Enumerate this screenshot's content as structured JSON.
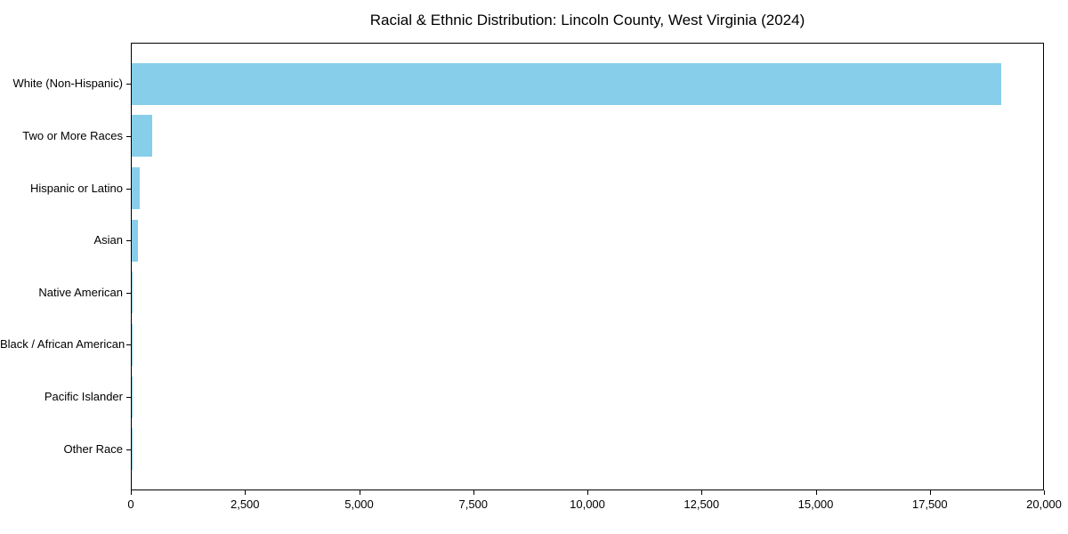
{
  "chart_data": {
    "type": "bar",
    "orientation": "horizontal",
    "title": "Racial & Ethnic Distribution: Lincoln County, West Virginia (2024)",
    "categories": [
      "White (Non-Hispanic)",
      "Two or More Races",
      "Hispanic or Latino",
      "Asian",
      "Native American",
      "Black / African American",
      "Pacific Islander",
      "Other Race"
    ],
    "values": [
      19050,
      450,
      180,
      135,
      25,
      12,
      4,
      6
    ],
    "xlabel": "",
    "ylabel": "",
    "xlim": [
      0,
      20000
    ],
    "xtick_values": [
      0,
      2500,
      5000,
      7500,
      10000,
      12500,
      15000,
      17500,
      20000
    ],
    "xtick_labels": [
      "0",
      "2,500",
      "5,000",
      "7,500",
      "10,000",
      "12,500",
      "15,000",
      "17,500",
      "20,000"
    ],
    "bar_color": "#87CEEB",
    "grid": false,
    "legend_position": "none"
  }
}
